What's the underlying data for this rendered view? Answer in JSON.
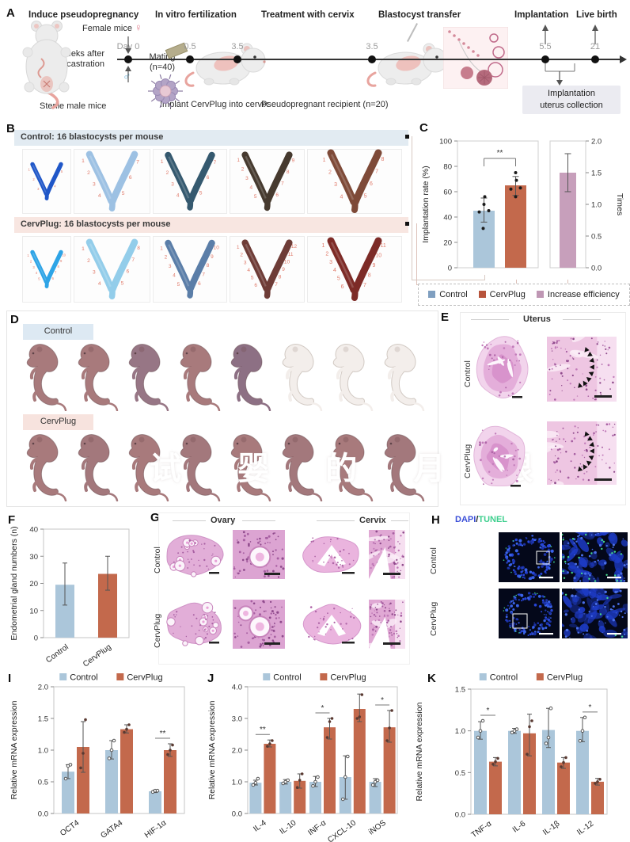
{
  "panels": {
    "A": "A",
    "B": "B",
    "C": "C",
    "D": "D",
    "E": "E",
    "F": "F",
    "G": "G",
    "H": "H",
    "I": "I",
    "J": "J",
    "K": "K"
  },
  "A": {
    "steps": [
      "Induce pseudopregnancy",
      "In vitro fertilization",
      "Treatment with cervix",
      "Blastocyst transfer",
      "Implantation",
      "Live birth"
    ],
    "female_label": "Female mice",
    "female_symbol": "♀",
    "male_symbol": "♂",
    "female_color": "#e07a8a",
    "male_color": "#6ab0d8",
    "castration_line1": "2 weeks after",
    "castration_line2": "castration",
    "sterile_label": "Sterile male mice",
    "day0_label": "Day 0",
    "mating_line1": "Mating",
    "mating_line2": "(n=40)",
    "timeline_points": [
      "0.5",
      "3.5",
      "3.5",
      "5.5",
      "21"
    ],
    "implant_label": "Implant CervPlug into cervix",
    "recipient_label": "Pseudopregnant recipient (n=20)",
    "collection_line1": "Implantation",
    "collection_line2": "uterus collection"
  },
  "B": {
    "groups": [
      {
        "title": "Control: 16 blastocysts per mouse",
        "header_bg": "#e2ebf2",
        "uteri": [
          {
            "color": "#2057c8",
            "n": 5
          },
          {
            "color": "#9dc1e3",
            "n": 7
          },
          {
            "color": "#35596f",
            "n": 7
          },
          {
            "color": "#463a2f",
            "n": 9
          },
          {
            "color": "#7e4a38",
            "n": 8
          }
        ]
      },
      {
        "title": "CervPlug: 16 blastocysts per mouse",
        "header_bg": "#f8e6e1",
        "uteri": [
          {
            "color": "#2ea4e6",
            "n": 10
          },
          {
            "color": "#93cdea",
            "n": 8
          },
          {
            "color": "#5b7ea8",
            "n": 10
          },
          {
            "color": "#6e3c37",
            "n": 12
          },
          {
            "color": "#7d2b27",
            "n": 11
          }
        ]
      }
    ]
  },
  "D": {
    "rows": [
      {
        "title": "Control",
        "chip_bg": "#dde9f3",
        "pups": [
          "#a87a7c",
          "#a87a7c",
          "#977685",
          "#a87a7c",
          "#8d7084",
          "#f3eeeb",
          "#f3eeeb",
          "#f3eeeb"
        ]
      },
      {
        "title": "CervPlug",
        "chip_bg": "#f7e3de",
        "pups": [
          "#a87a7c",
          "#a3787c",
          "#a87a7c",
          "#a3787c",
          "#a87a7c",
          "#a3787c",
          "#a87a7c",
          "#a3787c"
        ]
      }
    ],
    "watermark": "试 婴 的 月 根"
  },
  "E": {
    "title": "Uterus",
    "rows": [
      "Control",
      "CervPlug"
    ]
  },
  "G": {
    "col_titles": [
      "Ovary",
      "Cervix"
    ],
    "rows": [
      "Control",
      "CervPlug"
    ]
  },
  "H": {
    "title_dapi": "DAPI",
    "title_slash": "/",
    "title_tunel": "TUNEL",
    "dapi_color": "#3b4fd8",
    "tunel_color": "#3ecf8e",
    "rows": [
      "Control",
      "CervPlug"
    ]
  },
  "chart_data": [
    {
      "id": "C",
      "type": "bar",
      "ylabel_left": "Implantation rate (%)",
      "ylabel_right": "Times",
      "yticks_left": [
        "0",
        "20",
        "40",
        "60",
        "80",
        "100"
      ],
      "ylim_left": [
        0,
        100
      ],
      "yticks_right": [
        "0.0",
        "0.5",
        "1.0",
        "1.5",
        "2.0"
      ],
      "ylim_right": [
        0,
        2
      ],
      "bars": [
        {
          "label": "Control",
          "color": "#abc6da",
          "axis": "left",
          "value": 45,
          "err": [
            36,
            55
          ],
          "points": [
            31,
            44,
            45,
            50,
            56
          ]
        },
        {
          "label": "CervPlug",
          "color": "#c3694c",
          "axis": "left",
          "value": 65,
          "err": [
            57,
            72
          ],
          "points": [
            56,
            62,
            63,
            69,
            75
          ]
        },
        {
          "label": "Increase efficiency",
          "color": "#c79fbb",
          "axis": "right",
          "value": 1.5,
          "err": [
            1.2,
            1.8
          ],
          "points": []
        }
      ],
      "sig": "**",
      "legend": [
        {
          "label": "Control",
          "color": "#7f9fc0"
        },
        {
          "label": "CervPlug",
          "color": "#b8543c"
        },
        {
          "label": "Increase efficiency",
          "color": "#bf97b4"
        }
      ]
    },
    {
      "id": "F",
      "type": "bar",
      "ylabel": "Endometrial gland numbers (n)",
      "ylim": [
        0,
        40
      ],
      "yticks": [
        "0",
        "10",
        "20",
        "30",
        "40"
      ],
      "categories": [
        "Control",
        "CervPlug"
      ],
      "series": [
        {
          "name": "",
          "colors": [
            "#abc6da",
            "#c3694c"
          ],
          "values": [
            19.5,
            23.5
          ],
          "errors": [
            [
              12,
              27.5
            ],
            [
              17.5,
              30
            ]
          ]
        }
      ]
    },
    {
      "id": "I",
      "type": "bar",
      "ylabel": "Relative mRNA expression",
      "ylim": [
        0,
        2
      ],
      "yticks": [
        "0.0",
        "0.5",
        "1.0",
        "1.5",
        "2.0"
      ],
      "categories": [
        "OCT4",
        "GATA4",
        "HIF-1α"
      ],
      "series": [
        {
          "name": "Control",
          "color": "#abc6da",
          "pt": "open",
          "values": [
            0.66,
            1.0,
            0.35
          ],
          "errors": [
            [
              0.55,
              0.77
            ],
            [
              0.86,
              1.15
            ],
            [
              0.33,
              0.37
            ]
          ],
          "points": [
            [
              0.55,
              0.75,
              0.77
            ],
            [
              0.87,
              1.0,
              1.15
            ],
            [
              0.34,
              0.36,
              0.36
            ]
          ]
        },
        {
          "name": "CervPlug",
          "color": "#c3694c",
          "pt": "filled",
          "values": [
            1.05,
            1.33,
            1.0
          ],
          "errors": [
            [
              0.65,
              1.45
            ],
            [
              1.27,
              1.4
            ],
            [
              0.9,
              1.1
            ]
          ],
          "points": [
            [
              0.72,
              0.95,
              1.48
            ],
            [
              1.28,
              1.33,
              1.4
            ],
            [
              0.93,
              1.0,
              1.08
            ]
          ]
        }
      ],
      "sig": [
        {
          "cat": 2,
          "label": "**"
        }
      ],
      "legend": [
        {
          "label": "Control",
          "color": "#abc6da"
        },
        {
          "label": "CervPlug",
          "color": "#c3694c"
        }
      ]
    },
    {
      "id": "J",
      "type": "bar",
      "ylabel": "Relative mRNA expression",
      "ylim": [
        0,
        4
      ],
      "yticks": [
        "0.0",
        "1.0",
        "2.0",
        "3.0",
        "4.0"
      ],
      "categories": [
        "IL-4",
        "IL-10",
        "INF-α",
        "CXCL-10",
        "iNOS"
      ],
      "series": [
        {
          "name": "Control",
          "color": "#abc6da",
          "pt": "open",
          "values": [
            0.97,
            1.0,
            1.0,
            1.15,
            1.0
          ],
          "errors": [
            [
              0.9,
              1.05
            ],
            [
              0.93,
              1.07
            ],
            [
              0.85,
              1.17
            ],
            [
              0.45,
              1.82
            ],
            [
              0.85,
              1.1
            ]
          ],
          "points": [
            [
              0.9,
              0.97,
              1.1
            ],
            [
              0.95,
              1.0,
              1.05
            ],
            [
              0.87,
              1.0,
              1.15
            ],
            [
              0.45,
              1.15,
              1.8
            ],
            [
              0.9,
              1.0,
              1.05
            ]
          ]
        },
        {
          "name": "CervPlug",
          "color": "#c3694c",
          "pt": "filled",
          "values": [
            2.2,
            1.03,
            2.72,
            3.3,
            2.72
          ],
          "errors": [
            [
              2.1,
              2.32
            ],
            [
              0.8,
              1.25
            ],
            [
              2.35,
              3.0
            ],
            [
              2.9,
              3.77
            ],
            [
              2.25,
              3.25
            ]
          ],
          "points": [
            [
              2.12,
              2.2,
              2.3
            ],
            [
              0.82,
              1.05,
              1.25
            ],
            [
              2.4,
              2.9,
              3.0
            ],
            [
              3.0,
              3.05,
              3.75
            ],
            [
              2.3,
              2.7,
              3.25
            ]
          ]
        }
      ],
      "sig": [
        {
          "cat": 0,
          "label": "**"
        },
        {
          "cat": 2,
          "label": "*"
        },
        {
          "cat": 4,
          "label": "*"
        }
      ],
      "legend": [
        {
          "label": "Control",
          "color": "#abc6da"
        },
        {
          "label": "CervPlug",
          "color": "#c3694c"
        }
      ]
    },
    {
      "id": "K",
      "type": "bar",
      "ylabel": "Relative mRNA expression",
      "ylim": [
        0,
        1.5
      ],
      "yticks": [
        "0.0",
        "0.5",
        "1.0",
        "1.5"
      ],
      "categories": [
        "TNF-α",
        "IL-6",
        "IL-1β",
        "IL-12"
      ],
      "series": [
        {
          "name": "Control",
          "color": "#abc6da",
          "pt": "open",
          "values": [
            1.0,
            1.0,
            1.01,
            1.0
          ],
          "errors": [
            [
              0.9,
              1.11
            ],
            [
              0.97,
              1.03
            ],
            [
              0.8,
              1.27
            ],
            [
              0.87,
              1.16
            ]
          ],
          "points": [
            [
              0.92,
              1.0,
              1.12
            ],
            [
              0.98,
              1.0,
              1.02
            ],
            [
              0.85,
              0.92,
              1.27
            ],
            [
              0.88,
              1.0,
              1.16
            ]
          ]
        },
        {
          "name": "CervPlug",
          "color": "#c3694c",
          "pt": "filled",
          "values": [
            0.63,
            0.97,
            0.62,
            0.39
          ],
          "errors": [
            [
              0.58,
              0.68
            ],
            [
              0.7,
              1.2
            ],
            [
              0.55,
              0.68
            ],
            [
              0.35,
              0.43
            ]
          ],
          "points": [
            [
              0.6,
              0.63,
              0.67
            ],
            [
              0.72,
              1.05,
              1.12
            ],
            [
              0.57,
              0.62,
              0.68
            ],
            [
              0.37,
              0.39,
              0.42
            ]
          ]
        }
      ],
      "sig": [
        {
          "cat": 0,
          "label": "*"
        },
        {
          "cat": 3,
          "label": "*"
        }
      ],
      "legend": [
        {
          "label": "Control",
          "color": "#abc6da"
        },
        {
          "label": "CervPlug",
          "color": "#c3694c"
        }
      ]
    }
  ]
}
